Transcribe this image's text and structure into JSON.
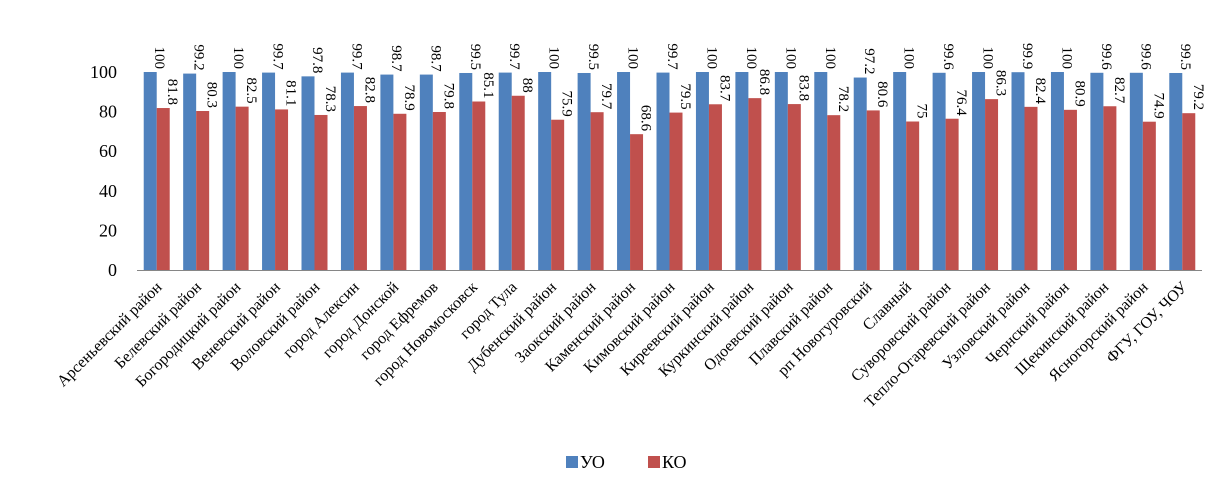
{
  "chart_data": {
    "type": "bar",
    "categories": [
      "Арсеньевский район",
      "Белевский район",
      "Богородицкий район",
      "Веневский район",
      "Воловский район",
      "город Алексин",
      "город Донской",
      "город Ефремов",
      "город Новомосковск",
      "город Тула",
      "Дубенский район",
      "Заокский район",
      "Каменский район",
      "Кимовский район",
      "Киреевский район",
      "Куркинский район",
      "Одоевский район",
      "Плавский район",
      "рп Новогуровский",
      "Славный",
      "Суворовский район",
      "Тепло-Огаревский район",
      "Узловский район",
      "Чернский район",
      "Щекинский район",
      "Ясногорский район",
      "ФГУ, ГОУ, ЧОУ"
    ],
    "series": [
      {
        "name": "УО",
        "color": "#4F81BD",
        "values": [
          100,
          99.2,
          100,
          99.7,
          97.8,
          99.7,
          98.7,
          98.7,
          99.5,
          99.7,
          100,
          99.5,
          100,
          99.7,
          100,
          100,
          100,
          100,
          97.2,
          100,
          99.6,
          100,
          99.9,
          100,
          99.6,
          99.6,
          99.5
        ]
      },
      {
        "name": "КО",
        "color": "#C0504D",
        "values": [
          81.8,
          80.3,
          82.5,
          81.1,
          78.3,
          82.8,
          78.9,
          79.8,
          85.1,
          88,
          75.9,
          79.7,
          68.6,
          79.5,
          83.7,
          86.8,
          83.8,
          78.2,
          80.6,
          75,
          76.4,
          86.3,
          82.4,
          80.9,
          82.7,
          74.9,
          79.2
        ]
      }
    ],
    "yticks": [
      "0",
      "20",
      "40",
      "60",
      "80",
      "100"
    ],
    "ylim": [
      0,
      100
    ],
    "grid": false,
    "legend": "bottom"
  }
}
